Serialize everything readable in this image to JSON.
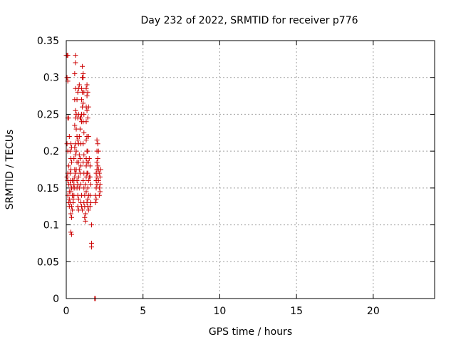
{
  "chart_data": {
    "type": "scatter",
    "title": "Day 232 of 2022, SRMTID for receiver p776",
    "xlabel": "GPS time / hours",
    "ylabel": "SRMTID / TECUs",
    "xlim": [
      0,
      24
    ],
    "ylim": [
      0,
      0.35
    ],
    "xticks": [
      "0",
      "5",
      "10",
      "15",
      "20"
    ],
    "yticks": [
      "0",
      "0.05",
      "0.1",
      "0.15",
      "0.2",
      "0.25",
      "0.3",
      "0.35"
    ],
    "grid": true,
    "marker": "plus",
    "color": "#cc0000",
    "series": [
      {
        "points": [
          [
            0.0,
            0.33
          ],
          [
            0.05,
            0.33
          ],
          [
            0.1,
            0.33
          ],
          [
            0.05,
            0.3
          ],
          [
            0.1,
            0.295
          ],
          [
            0.1,
            0.245
          ],
          [
            0.15,
            0.245
          ],
          [
            0.05,
            0.21
          ],
          [
            0.1,
            0.2
          ],
          [
            0.2,
            0.22
          ],
          [
            0.15,
            0.18
          ],
          [
            0.1,
            0.17
          ],
          [
            0.05,
            0.165
          ],
          [
            0.1,
            0.16
          ],
          [
            0.15,
            0.155
          ],
          [
            0.2,
            0.145
          ],
          [
            0.1,
            0.14
          ],
          [
            0.2,
            0.135
          ],
          [
            0.15,
            0.13
          ],
          [
            0.25,
            0.13
          ],
          [
            0.2,
            0.125
          ],
          [
            0.3,
            0.145
          ],
          [
            0.25,
            0.155
          ],
          [
            0.3,
            0.16
          ],
          [
            0.25,
            0.17
          ],
          [
            0.3,
            0.175
          ],
          [
            0.35,
            0.185
          ],
          [
            0.3,
            0.19
          ],
          [
            0.25,
            0.2
          ],
          [
            0.35,
            0.205
          ],
          [
            0.3,
            0.21
          ],
          [
            0.4,
            0.16
          ],
          [
            0.35,
            0.15
          ],
          [
            0.4,
            0.14
          ],
          [
            0.45,
            0.135
          ],
          [
            0.35,
            0.125
          ],
          [
            0.3,
            0.115
          ],
          [
            0.35,
            0.11
          ],
          [
            0.3,
            0.09
          ],
          [
            0.35,
            0.087
          ],
          [
            0.4,
            0.12
          ],
          [
            0.45,
            0.13
          ],
          [
            0.5,
            0.14
          ],
          [
            0.45,
            0.15
          ],
          [
            0.5,
            0.155
          ],
          [
            0.55,
            0.15
          ],
          [
            0.5,
            0.16
          ],
          [
            0.55,
            0.165
          ],
          [
            0.6,
            0.17
          ],
          [
            0.55,
            0.175
          ],
          [
            0.5,
            0.19
          ],
          [
            0.6,
            0.195
          ],
          [
            0.55,
            0.205
          ],
          [
            0.6,
            0.21
          ],
          [
            0.55,
            0.235
          ],
          [
            0.6,
            0.245
          ],
          [
            0.6,
            0.255
          ],
          [
            0.55,
            0.27
          ],
          [
            0.6,
            0.285
          ],
          [
            0.55,
            0.305
          ],
          [
            0.6,
            0.32
          ],
          [
            0.6,
            0.33
          ],
          [
            0.65,
            0.25
          ],
          [
            0.65,
            0.23
          ],
          [
            0.7,
            0.22
          ],
          [
            0.65,
            0.2
          ],
          [
            0.7,
            0.185
          ],
          [
            0.65,
            0.175
          ],
          [
            0.7,
            0.16
          ],
          [
            0.75,
            0.155
          ],
          [
            0.7,
            0.15
          ],
          [
            0.75,
            0.14
          ],
          [
            0.8,
            0.135
          ],
          [
            0.75,
            0.125
          ],
          [
            0.8,
            0.12
          ],
          [
            0.85,
            0.15
          ],
          [
            0.8,
            0.165
          ],
          [
            0.85,
            0.175
          ],
          [
            0.8,
            0.185
          ],
          [
            0.85,
            0.195
          ],
          [
            0.8,
            0.21
          ],
          [
            0.75,
            0.215
          ],
          [
            0.85,
            0.22
          ],
          [
            0.75,
            0.245
          ],
          [
            0.8,
            0.25
          ],
          [
            0.7,
            0.27
          ],
          [
            0.75,
            0.28
          ],
          [
            0.8,
            0.285
          ],
          [
            0.85,
            0.29
          ],
          [
            0.9,
            0.245
          ],
          [
            0.9,
            0.23
          ],
          [
            0.95,
            0.21
          ],
          [
            0.9,
            0.19
          ],
          [
            0.95,
            0.18
          ],
          [
            0.9,
            0.17
          ],
          [
            0.95,
            0.155
          ],
          [
            1.0,
            0.14
          ],
          [
            0.95,
            0.13
          ],
          [
            1.0,
            0.125
          ],
          [
            1.05,
            0.12
          ],
          [
            1.0,
            0.24
          ],
          [
            0.95,
            0.245
          ],
          [
            1.0,
            0.25
          ],
          [
            1.05,
            0.26
          ],
          [
            1.0,
            0.27
          ],
          [
            1.05,
            0.28
          ],
          [
            1.0,
            0.285
          ],
          [
            1.05,
            0.3
          ],
          [
            1.1,
            0.305
          ],
          [
            1.05,
            0.315
          ],
          [
            1.1,
            0.3
          ],
          [
            1.15,
            0.28
          ],
          [
            1.1,
            0.265
          ],
          [
            1.15,
            0.25
          ],
          [
            1.1,
            0.24
          ],
          [
            1.15,
            0.225
          ],
          [
            1.1,
            0.21
          ],
          [
            1.15,
            0.195
          ],
          [
            1.1,
            0.185
          ],
          [
            1.15,
            0.17
          ],
          [
            1.1,
            0.16
          ],
          [
            1.15,
            0.15
          ],
          [
            1.2,
            0.14
          ],
          [
            1.15,
            0.13
          ],
          [
            1.2,
            0.125
          ],
          [
            1.25,
            0.115
          ],
          [
            1.2,
            0.11
          ],
          [
            1.25,
            0.105
          ],
          [
            1.3,
            0.145
          ],
          [
            1.25,
            0.155
          ],
          [
            1.3,
            0.165
          ],
          [
            1.35,
            0.17
          ],
          [
            1.3,
            0.18
          ],
          [
            1.35,
            0.185
          ],
          [
            1.3,
            0.19
          ],
          [
            1.35,
            0.2
          ],
          [
            1.3,
            0.215
          ],
          [
            1.35,
            0.22
          ],
          [
            1.3,
            0.24
          ],
          [
            1.35,
            0.255
          ],
          [
            1.3,
            0.26
          ],
          [
            1.35,
            0.275
          ],
          [
            1.3,
            0.285
          ],
          [
            1.35,
            0.29
          ],
          [
            1.4,
            0.28
          ],
          [
            1.45,
            0.26
          ],
          [
            1.4,
            0.245
          ],
          [
            1.45,
            0.22
          ],
          [
            1.4,
            0.2
          ],
          [
            1.45,
            0.185
          ],
          [
            1.4,
            0.17
          ],
          [
            1.45,
            0.16
          ],
          [
            1.4,
            0.15
          ],
          [
            1.45,
            0.14
          ],
          [
            1.4,
            0.135
          ],
          [
            1.35,
            0.13
          ],
          [
            1.4,
            0.125
          ],
          [
            1.45,
            0.12
          ],
          [
            1.5,
            0.165
          ],
          [
            1.55,
            0.18
          ],
          [
            1.5,
            0.19
          ],
          [
            1.55,
            0.165
          ],
          [
            1.6,
            0.155
          ],
          [
            1.55,
            0.14
          ],
          [
            1.6,
            0.13
          ],
          [
            1.55,
            0.125
          ],
          [
            1.65,
            0.1
          ],
          [
            1.65,
            0.075
          ],
          [
            1.65,
            0.07
          ],
          [
            1.85,
            0.0
          ],
          [
            1.9,
            0.0
          ],
          [
            1.9,
            0.13
          ],
          [
            1.95,
            0.135
          ],
          [
            1.9,
            0.14
          ],
          [
            1.95,
            0.15
          ],
          [
            2.0,
            0.155
          ],
          [
            1.95,
            0.16
          ],
          [
            2.0,
            0.165
          ],
          [
            1.95,
            0.17
          ],
          [
            2.0,
            0.175
          ],
          [
            2.05,
            0.18
          ],
          [
            2.0,
            0.185
          ],
          [
            2.05,
            0.19
          ],
          [
            2.0,
            0.2
          ],
          [
            2.05,
            0.21
          ],
          [
            2.0,
            0.215
          ],
          [
            2.1,
            0.2
          ],
          [
            2.1,
            0.175
          ],
          [
            2.15,
            0.17
          ],
          [
            2.1,
            0.16
          ],
          [
            2.15,
            0.15
          ],
          [
            2.2,
            0.145
          ],
          [
            2.15,
            0.14
          ],
          [
            2.2,
            0.155
          ],
          [
            2.2,
            0.165
          ],
          [
            2.25,
            0.175
          ]
        ]
      }
    ]
  }
}
